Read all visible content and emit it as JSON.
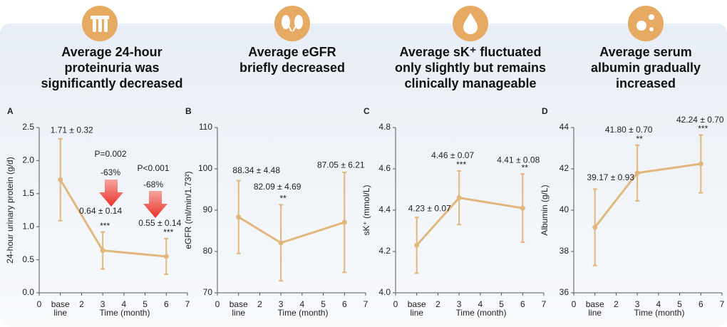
{
  "chart_data": [
    {
      "type": "line",
      "panel": "A",
      "title": "Average 24-hour proteinuria was significantly decreased",
      "xlabel": "Time (month)",
      "ylabel": "24-hour urinary protein (g/d)",
      "x": [
        1,
        3,
        6
      ],
      "xlim": [
        0,
        7
      ],
      "xticks": [
        0,
        {
          "value": 1,
          "label": "base line"
        },
        2,
        3,
        4,
        5,
        6,
        7
      ],
      "ylim": [
        0,
        2.5
      ],
      "yticks": [
        {
          "value": 0,
          "label": "0.0"
        },
        0.5,
        {
          "value": 1,
          "label": "1.0"
        },
        1.5,
        {
          "value": 2,
          "label": "2.0"
        },
        2.5
      ],
      "series": [
        {
          "color": "#e2b77c",
          "values": [
            1.71,
            0.64,
            0.55
          ],
          "value_labels": [
            "1.71 ± 0.32",
            "0.64 ± 0.14",
            "0.55 ± 0.14"
          ],
          "errors": [
            0.62,
            0.28,
            0.27
          ],
          "significance": [
            null,
            "***",
            "***"
          ]
        }
      ],
      "annotations": [
        "P=0.002",
        "-63%",
        "P<0.001",
        "-68%"
      ]
    },
    {
      "type": "line",
      "panel": "B",
      "title": "Average eGFR briefly decreased",
      "xlabel": "Time (month)",
      "ylabel": "eGFR (ml/min/1.73²)",
      "x": [
        1,
        3,
        6
      ],
      "xlim": [
        0,
        7
      ],
      "xticks": [
        0,
        {
          "value": 1,
          "label": "base line"
        },
        2,
        3,
        4,
        5,
        6,
        7
      ],
      "ylim": [
        70,
        110
      ],
      "yticks": [
        70,
        80,
        90,
        100,
        110
      ],
      "series": [
        {
          "color": "#e2b77c",
          "values": [
            88.34,
            82.09,
            87.05
          ],
          "value_labels": [
            "88.34 ± 4.48",
            "82.09 ± 4.69",
            "87.05 ± 6.21"
          ],
          "errors": [
            8.8,
            9.2,
            12.1
          ],
          "significance": [
            null,
            "**",
            null
          ]
        }
      ]
    },
    {
      "type": "line",
      "panel": "C",
      "title": "Average sK⁺ fluctuated only slightly but remains clinically manageable",
      "xlabel": "Time (month)",
      "ylabel": "sK⁺ (mmol/L)",
      "x": [
        1,
        3,
        6
      ],
      "xlim": [
        0,
        7
      ],
      "xticks": [
        0,
        {
          "value": 1,
          "label": "base line"
        },
        2,
        3,
        4,
        5,
        6,
        7
      ],
      "ylim": [
        4.0,
        4.8
      ],
      "yticks": [
        {
          "value": 4.0,
          "label": "4.0"
        },
        4.2,
        4.4,
        4.6,
        4.8
      ],
      "series": [
        {
          "color": "#e2b77c",
          "values": [
            4.23,
            4.46,
            4.41
          ],
          "value_labels": [
            "4.23 ± 0.07",
            "4.46 ± 0.07",
            "4.41 ± 0.08"
          ],
          "errors": [
            0.135,
            0.13,
            0.165
          ],
          "significance": [
            null,
            "***",
            "**"
          ]
        }
      ]
    },
    {
      "type": "line",
      "panel": "D",
      "title": "Average serum albumin gradually increased",
      "xlabel": "Time (month)",
      "ylabel": "Albumin (g/L)",
      "x": [
        1,
        3,
        6
      ],
      "xlim": [
        0,
        7
      ],
      "xticks": [
        0,
        {
          "value": 1,
          "label": "base line"
        },
        2,
        3,
        4,
        5,
        6,
        7
      ],
      "ylim": [
        36,
        44
      ],
      "yticks": [
        36,
        38,
        40,
        42,
        44
      ],
      "series": [
        {
          "color": "#e2b77c",
          "values": [
            39.17,
            41.8,
            42.24
          ],
          "value_labels": [
            "39.17 ± 0.93",
            "41.80 ± 0.70",
            "42.24 ± 0.70"
          ],
          "errors": [
            1.85,
            1.35,
            1.4
          ],
          "significance": [
            null,
            "**",
            "***"
          ]
        }
      ]
    }
  ]
}
